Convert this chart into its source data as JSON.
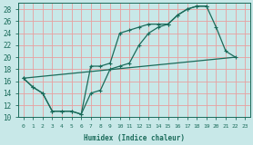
{
  "xlabel": "Humidex (Indice chaleur)",
  "bg_color": "#c8e8e8",
  "grid_color": "#e8a0a0",
  "line_color": "#1a6b5a",
  "xlim": [
    -0.5,
    23.5
  ],
  "ylim": [
    10,
    29
  ],
  "xticks": [
    0,
    1,
    2,
    3,
    4,
    5,
    6,
    7,
    8,
    9,
    10,
    11,
    12,
    13,
    14,
    15,
    16,
    17,
    18,
    19,
    20,
    21,
    22,
    23
  ],
  "yticks": [
    10,
    12,
    14,
    16,
    18,
    20,
    22,
    24,
    26,
    28
  ],
  "line1_x": [
    0,
    1,
    2,
    3,
    4,
    5,
    6,
    7,
    8,
    9,
    10,
    11,
    12,
    13,
    14,
    15,
    16,
    17,
    18,
    19,
    20,
    21,
    22
  ],
  "line1_y": [
    16.5,
    15,
    14,
    11,
    11,
    11,
    10.5,
    18.5,
    18.5,
    19,
    24,
    24.5,
    25,
    25.5,
    25.5,
    25.5,
    27,
    28,
    28.5,
    28.5,
    25,
    21,
    20
  ],
  "line2_x": [
    0,
    1,
    2,
    3,
    4,
    5,
    6,
    7,
    8,
    9,
    10,
    11,
    12,
    13,
    14,
    15,
    16,
    17,
    18,
    19
  ],
  "line2_y": [
    16.5,
    15,
    14,
    11,
    11,
    11,
    10.5,
    14,
    14.5,
    18,
    18.5,
    19,
    22,
    24,
    25,
    25.5,
    27,
    28,
    28.5,
    28.5
  ],
  "line3_x": [
    0,
    22
  ],
  "line3_y": [
    16.5,
    20
  ]
}
